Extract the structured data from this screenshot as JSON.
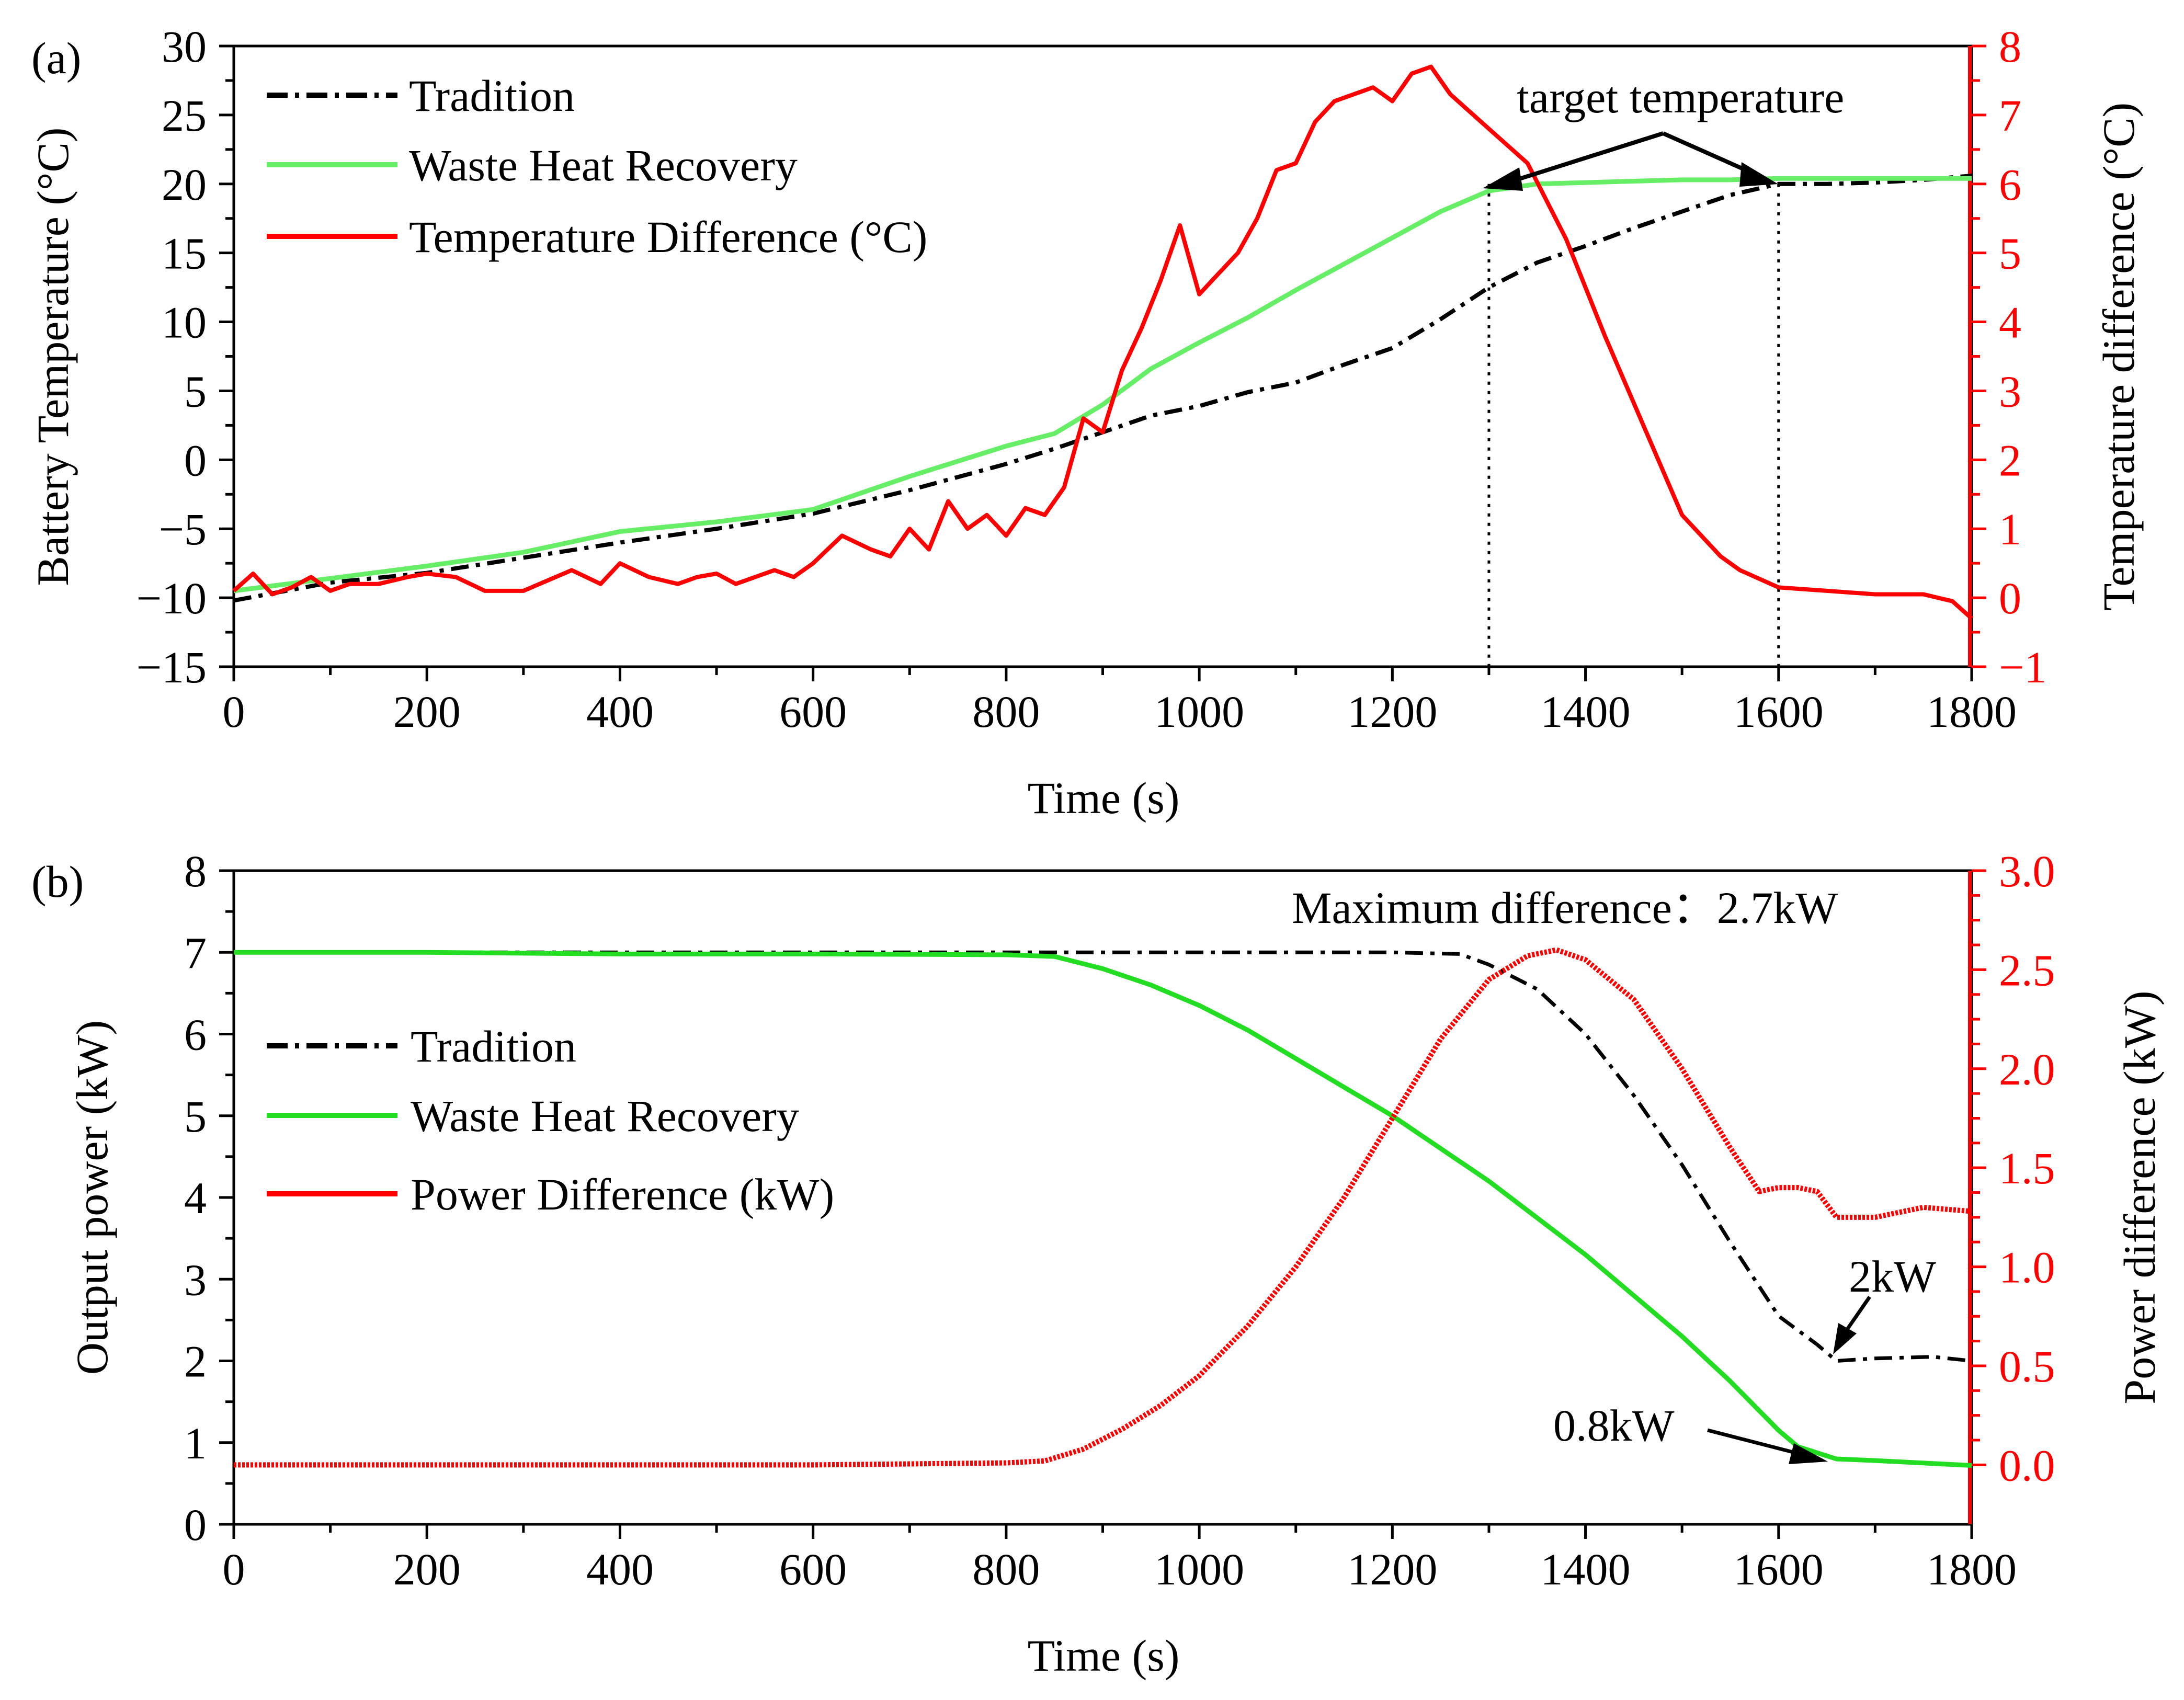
{
  "colors": {
    "tradition": "#000000",
    "waste": "#66ee66",
    "waste_b": "#22dd22",
    "diff": "#ff0000",
    "axis": "#000000"
  },
  "chart_data": [
    {
      "panel_label": "(a)",
      "type": "line",
      "xlabel": "Time (s)",
      "ylabel": "Battery Temperature (°C)",
      "y2label": "Temperature difference (°C)",
      "xlim": [
        0,
        1800
      ],
      "ylim": [
        -15,
        30
      ],
      "y2lim": [
        -1,
        8
      ],
      "xticks": [
        0,
        200,
        400,
        600,
        800,
        1000,
        1200,
        1400,
        1600,
        1800
      ],
      "yticks": [
        -15,
        -10,
        -5,
        0,
        5,
        10,
        15,
        20,
        25,
        30
      ],
      "y2ticks": [
        -1,
        0,
        1,
        2,
        3,
        4,
        5,
        6,
        7,
        8
      ],
      "legend": [
        "Tradition",
        "Waste Heat Recovery",
        "Temperature Difference (°C)"
      ],
      "annotations": {
        "target": "target temperature",
        "marks_x": [
          1300,
          1600
        ]
      },
      "series": [
        {
          "name": "Tradition",
          "axis": "y",
          "x": [
            0,
            100,
            200,
            300,
            400,
            500,
            600,
            700,
            800,
            850,
            900,
            950,
            1000,
            1050,
            1100,
            1150,
            1200,
            1250,
            1300,
            1350,
            1400,
            1450,
            1500,
            1550,
            1600,
            1650,
            1700,
            1750,
            1800
          ],
          "y": [
            -10.2,
            -8.9,
            -8.2,
            -7.1,
            -6.0,
            -5.0,
            -3.9,
            -2.2,
            -0.3,
            0.8,
            2.0,
            3.2,
            3.9,
            4.9,
            5.6,
            6.9,
            8.1,
            10.2,
            12.5,
            14.3,
            15.5,
            16.8,
            18.0,
            19.2,
            20.0,
            20.0,
            20.1,
            20.3,
            20.6
          ]
        },
        {
          "name": "Waste Heat Recovery",
          "axis": "y",
          "x": [
            0,
            100,
            200,
            300,
            400,
            500,
            600,
            700,
            800,
            850,
            900,
            950,
            1000,
            1050,
            1100,
            1150,
            1200,
            1250,
            1300,
            1350,
            1400,
            1450,
            1500,
            1550,
            1600,
            1650,
            1700,
            1750,
            1800
          ],
          "y": [
            -9.5,
            -8.6,
            -7.7,
            -6.7,
            -5.2,
            -4.5,
            -3.6,
            -1.2,
            1.0,
            1.9,
            4.0,
            6.6,
            8.5,
            10.3,
            12.3,
            14.2,
            16.1,
            18.0,
            19.5,
            20.0,
            20.1,
            20.2,
            20.3,
            20.3,
            20.4,
            20.4,
            20.4,
            20.4,
            20.4
          ]
        },
        {
          "name": "Temperature Difference (°C)",
          "axis": "y2",
          "x": [
            0,
            20,
            40,
            60,
            80,
            100,
            120,
            150,
            180,
            200,
            230,
            260,
            300,
            350,
            380,
            400,
            430,
            460,
            480,
            500,
            520,
            540,
            560,
            580,
            600,
            630,
            660,
            680,
            700,
            720,
            740,
            760,
            780,
            800,
            820,
            840,
            860,
            880,
            900,
            920,
            940,
            960,
            980,
            1000,
            1020,
            1040,
            1060,
            1080,
            1100,
            1120,
            1140,
            1160,
            1180,
            1200,
            1220,
            1240,
            1260,
            1300,
            1340,
            1380,
            1420,
            1460,
            1500,
            1540,
            1560,
            1600,
            1650,
            1700,
            1750,
            1780,
            1800
          ],
          "y": [
            0.1,
            0.35,
            0.05,
            0.15,
            0.3,
            0.1,
            0.2,
            0.2,
            0.3,
            0.35,
            0.3,
            0.1,
            0.1,
            0.4,
            0.2,
            0.5,
            0.3,
            0.2,
            0.3,
            0.35,
            0.2,
            0.3,
            0.4,
            0.3,
            0.5,
            0.9,
            0.7,
            0.6,
            1.0,
            0.7,
            1.4,
            1.0,
            1.2,
            0.9,
            1.3,
            1.2,
            1.6,
            2.6,
            2.4,
            3.3,
            3.9,
            4.6,
            5.4,
            4.4,
            4.7,
            5.0,
            5.5,
            6.2,
            6.3,
            6.9,
            7.2,
            7.3,
            7.4,
            7.2,
            7.6,
            7.7,
            7.3,
            6.8,
            6.3,
            5.2,
            3.8,
            2.5,
            1.2,
            0.6,
            0.4,
            0.15,
            0.1,
            0.05,
            0.05,
            -0.05,
            -0.3
          ]
        }
      ]
    },
    {
      "panel_label": "(b)",
      "type": "line",
      "xlabel": "Time (s)",
      "ylabel": "Output power (kW)",
      "y2label": "Power difference (kW)",
      "xlim": [
        0,
        1800
      ],
      "ylim": [
        0,
        8
      ],
      "y2lim": [
        -0.3,
        3.0
      ],
      "xticks": [
        0,
        200,
        400,
        600,
        800,
        1000,
        1200,
        1400,
        1600,
        1800
      ],
      "yticks": [
        0,
        1,
        2,
        3,
        4,
        5,
        6,
        7,
        8
      ],
      "y2ticks": [
        0.0,
        0.5,
        1.0,
        1.5,
        2.0,
        2.5,
        3.0
      ],
      "legend": [
        "Tradition",
        "Waste Heat Recovery",
        "Power Difference (kW)"
      ],
      "annotations": {
        "max_diff": "Maximum difference：2.7kW",
        "two_kw": "2kW",
        "point_eight": "0.8kW"
      },
      "series": [
        {
          "name": "Tradition",
          "axis": "y",
          "x": [
            0,
            200,
            400,
            600,
            800,
            1000,
            1200,
            1270,
            1300,
            1350,
            1400,
            1450,
            1500,
            1550,
            1600,
            1640,
            1660,
            1700,
            1760,
            1800
          ],
          "y": [
            7.0,
            7.0,
            7.0,
            7.0,
            7.0,
            7.0,
            7.0,
            6.98,
            6.85,
            6.55,
            6.0,
            5.25,
            4.4,
            3.45,
            2.55,
            2.2,
            2.0,
            2.03,
            2.05,
            2.0
          ]
        },
        {
          "name": "Waste Heat Recovery",
          "axis": "y",
          "x": [
            0,
            200,
            400,
            600,
            800,
            850,
            900,
            950,
            1000,
            1050,
            1100,
            1150,
            1200,
            1250,
            1300,
            1350,
            1400,
            1450,
            1500,
            1550,
            1600,
            1620,
            1660,
            1700,
            1800
          ],
          "y": [
            7.0,
            7.0,
            6.98,
            6.98,
            6.97,
            6.95,
            6.8,
            6.6,
            6.35,
            6.05,
            5.7,
            5.35,
            5.0,
            4.6,
            4.2,
            3.75,
            3.3,
            2.8,
            2.3,
            1.75,
            1.15,
            0.95,
            0.8,
            0.78,
            0.72
          ]
        },
        {
          "name": "Power Difference (kW)",
          "axis": "y2",
          "x": [
            0,
            200,
            400,
            600,
            800,
            840,
            880,
            920,
            960,
            1000,
            1050,
            1100,
            1150,
            1200,
            1250,
            1300,
            1340,
            1370,
            1400,
            1450,
            1500,
            1550,
            1580,
            1600,
            1620,
            1640,
            1660,
            1700,
            1750,
            1800
          ],
          "y": [
            0.0,
            0.0,
            0.0,
            0.0,
            0.01,
            0.02,
            0.08,
            0.18,
            0.3,
            0.45,
            0.7,
            1.0,
            1.35,
            1.75,
            2.15,
            2.45,
            2.57,
            2.6,
            2.55,
            2.35,
            2.0,
            1.6,
            1.38,
            1.4,
            1.4,
            1.38,
            1.25,
            1.25,
            1.3,
            1.28
          ]
        }
      ]
    }
  ]
}
